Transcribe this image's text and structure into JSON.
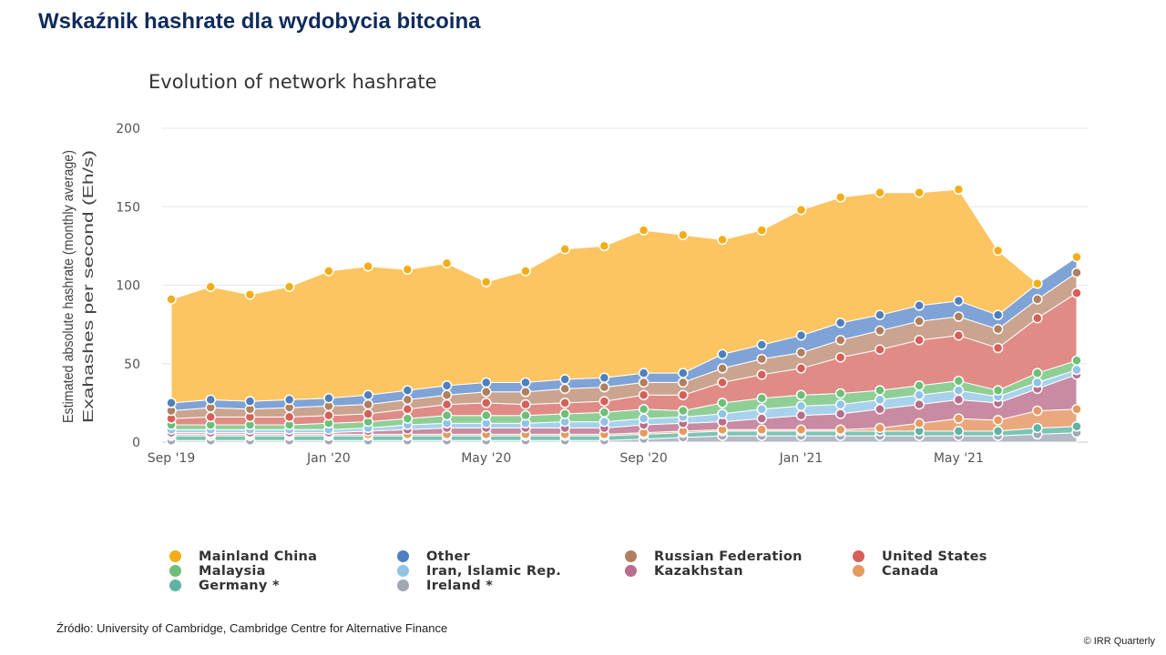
{
  "slide": {
    "title": "Wskaźnik hashrate dla wydobycia bitcoina",
    "source": "Źródło: University of Cambridge, Cambridge Centre for Alternative Finance",
    "copyright": "© IRR Quarterly"
  },
  "chart_data": {
    "type": "area",
    "stacked": true,
    "title": "Evolution of network hashrate",
    "xlabel": "",
    "ylabel": [
      "Estimated absolute hashrate (monthly average)",
      "Exahashes per second (Eh/s)"
    ],
    "ylim": [
      0,
      200
    ],
    "yticks": [
      0,
      50,
      100,
      150,
      200
    ],
    "grid": true,
    "legend_position": "bottom",
    "x_tick_labels": [
      {
        "index": 0,
        "label": "Sep '19"
      },
      {
        "index": 4,
        "label": "Jan '20"
      },
      {
        "index": 8,
        "label": "May '20"
      },
      {
        "index": 12,
        "label": "Sep '20"
      },
      {
        "index": 16,
        "label": "Jan '21"
      },
      {
        "index": 20,
        "label": "May '21"
      }
    ],
    "categories": [
      "Sep '19",
      "Oct '19",
      "Nov '19",
      "Dec '19",
      "Jan '20",
      "Feb '20",
      "Mar '20",
      "Apr '20",
      "May '20",
      "Jun '20",
      "Jul '20",
      "Aug '20",
      "Sep '20",
      "Oct '20",
      "Nov '20",
      "Dec '20",
      "Jan '21",
      "Feb '21",
      "Mar '21",
      "Apr '21",
      "May '21",
      "Jun '21",
      "Jul '21",
      "Aug '21"
    ],
    "series": [
      {
        "name": "Ireland *",
        "color": "#b4b9c6",
        "values": [
          1,
          1,
          1,
          1,
          1,
          1,
          1,
          1,
          1,
          1,
          1,
          1,
          2,
          3,
          4,
          4,
          4,
          4,
          4,
          4,
          4,
          4,
          5,
          6
        ]
      },
      {
        "name": "Germany *",
        "color": "#7ac4b4",
        "values": [
          3,
          3,
          3,
          3,
          3,
          3,
          3,
          3,
          3,
          3,
          3,
          3,
          3,
          3,
          3,
          3,
          3,
          3,
          3,
          3,
          3,
          3,
          4,
          4
        ]
      },
      {
        "name": "Canada",
        "color": "#eaa87e",
        "values": [
          1,
          1,
          1,
          1,
          1,
          1,
          1,
          1,
          1,
          1,
          1,
          1,
          1,
          1,
          1,
          1,
          1,
          1,
          2,
          5,
          8,
          7,
          11,
          11
        ]
      },
      {
        "name": "Kazakhstan",
        "color": "#c98aa4",
        "values": [
          1,
          1,
          1,
          1,
          1,
          2,
          3,
          4,
          4,
          4,
          4,
          4,
          5,
          5,
          5,
          7,
          9,
          10,
          12,
          12,
          12,
          11,
          14,
          22
        ]
      },
      {
        "name": "Iran, Islamic Rep.",
        "color": "#a8d2ec",
        "values": [
          2,
          2,
          2,
          2,
          2,
          2,
          3,
          3,
          3,
          3,
          4,
          4,
          4,
          4,
          5,
          6,
          6,
          6,
          6,
          6,
          6,
          4,
          4,
          3
        ]
      },
      {
        "name": "Malaysia",
        "color": "#8fcf96",
        "values": [
          3,
          3,
          3,
          3,
          4,
          4,
          4,
          5,
          5,
          5,
          5,
          6,
          6,
          4,
          7,
          7,
          7,
          7,
          6,
          6,
          6,
          4,
          6,
          6
        ]
      },
      {
        "name": "United States",
        "color": "#e08b86",
        "values": [
          4,
          5,
          5,
          5,
          5,
          5,
          6,
          7,
          8,
          7,
          7,
          7,
          9,
          10,
          13,
          15,
          17,
          23,
          26,
          29,
          29,
          27,
          35,
          43
        ]
      },
      {
        "name": "Russian Federation",
        "color": "#caa48e",
        "values": [
          5,
          6,
          5,
          6,
          6,
          6,
          6,
          6,
          7,
          8,
          9,
          9,
          8,
          8,
          9,
          10,
          10,
          11,
          12,
          12,
          12,
          12,
          12,
          13
        ]
      },
      {
        "name": "Other",
        "color": "#7fa3d6",
        "values": [
          5,
          5,
          5,
          5,
          5,
          6,
          6,
          6,
          6,
          6,
          6,
          6,
          6,
          6,
          9,
          9,
          11,
          11,
          10,
          10,
          10,
          9,
          10,
          10
        ]
      },
      {
        "name": "Mainland China",
        "color": "#fcc561",
        "values": [
          66,
          72,
          68,
          72,
          81,
          82,
          77,
          78,
          64,
          71,
          83,
          84,
          91,
          88,
          73,
          73,
          80,
          80,
          78,
          72,
          71,
          41,
          0,
          0
        ]
      }
    ],
    "legend_order": [
      "Mainland China",
      "Other",
      "Russian Federation",
      "United States",
      "Malaysia",
      "Iran, Islamic Rep.",
      "Kazakhstan",
      "Canada",
      "Germany *",
      "Ireland *"
    ],
    "dot_colors": {
      "Mainland China": "#f4ad16",
      "Other": "#4f7fbf",
      "Russian Federation": "#b07f5f",
      "United States": "#d65f58",
      "Malaysia": "#6dbf78",
      "Iran, Islamic Rep.": "#91c3e6",
      "Kazakhstan": "#b96d8c",
      "Canada": "#e59a5f",
      "Germany *": "#5fb3a5",
      "Ireland *": "#a2a7b4"
    }
  }
}
